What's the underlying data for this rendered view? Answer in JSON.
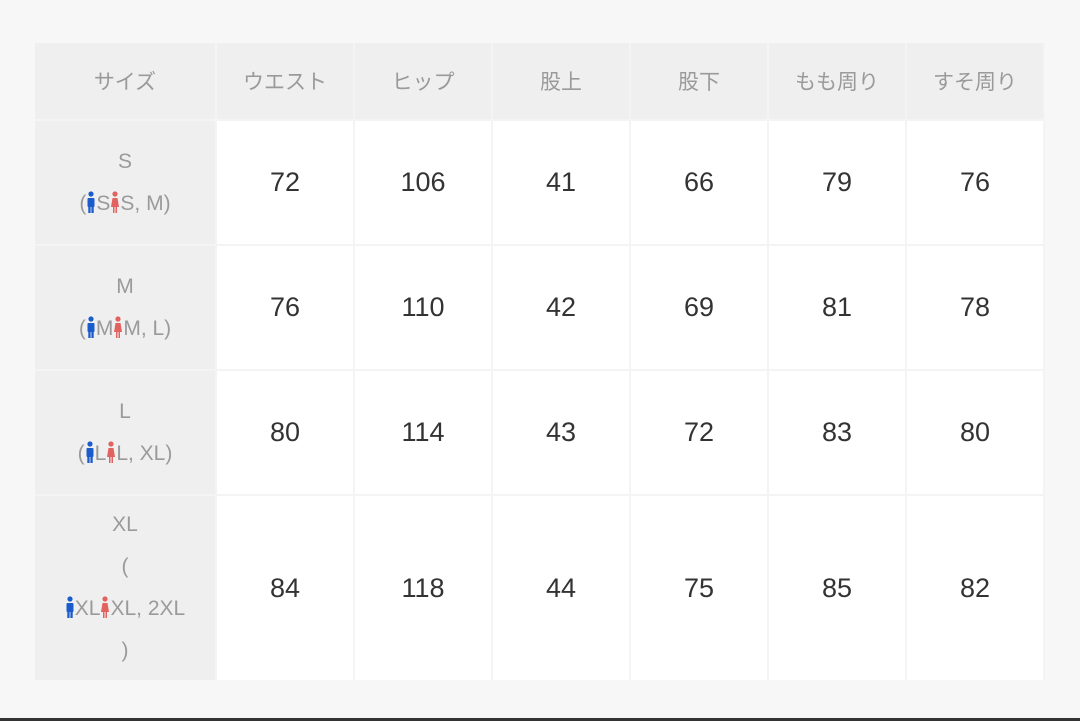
{
  "headers": [
    "サイズ",
    "ウエスト",
    "ヒップ",
    "股上",
    "股下",
    "もも周り",
    "すそ周り"
  ],
  "rows": [
    {
      "size": "S",
      "men": "S",
      "women": "S, M",
      "values": [
        "72",
        "106",
        "41",
        "66",
        "79",
        "76"
      ]
    },
    {
      "size": "M",
      "men": "M",
      "women": "M, L",
      "values": [
        "76",
        "110",
        "42",
        "69",
        "81",
        "78"
      ]
    },
    {
      "size": "L",
      "men": "L",
      "women": "L, XL",
      "values": [
        "80",
        "114",
        "43",
        "72",
        "83",
        "80"
      ]
    },
    {
      "size": "XL",
      "men": "XL",
      "women": "XL, 2XL",
      "values": [
        "84",
        "118",
        "44",
        "75",
        "85",
        "82"
      ]
    }
  ],
  "paren_open": "(",
  "paren_close": ")",
  "colors": {
    "men_icon": "#1b5ccc",
    "women_icon": "#e2625f"
  },
  "icons": {
    "men": "man-icon",
    "women": "woman-icon"
  }
}
